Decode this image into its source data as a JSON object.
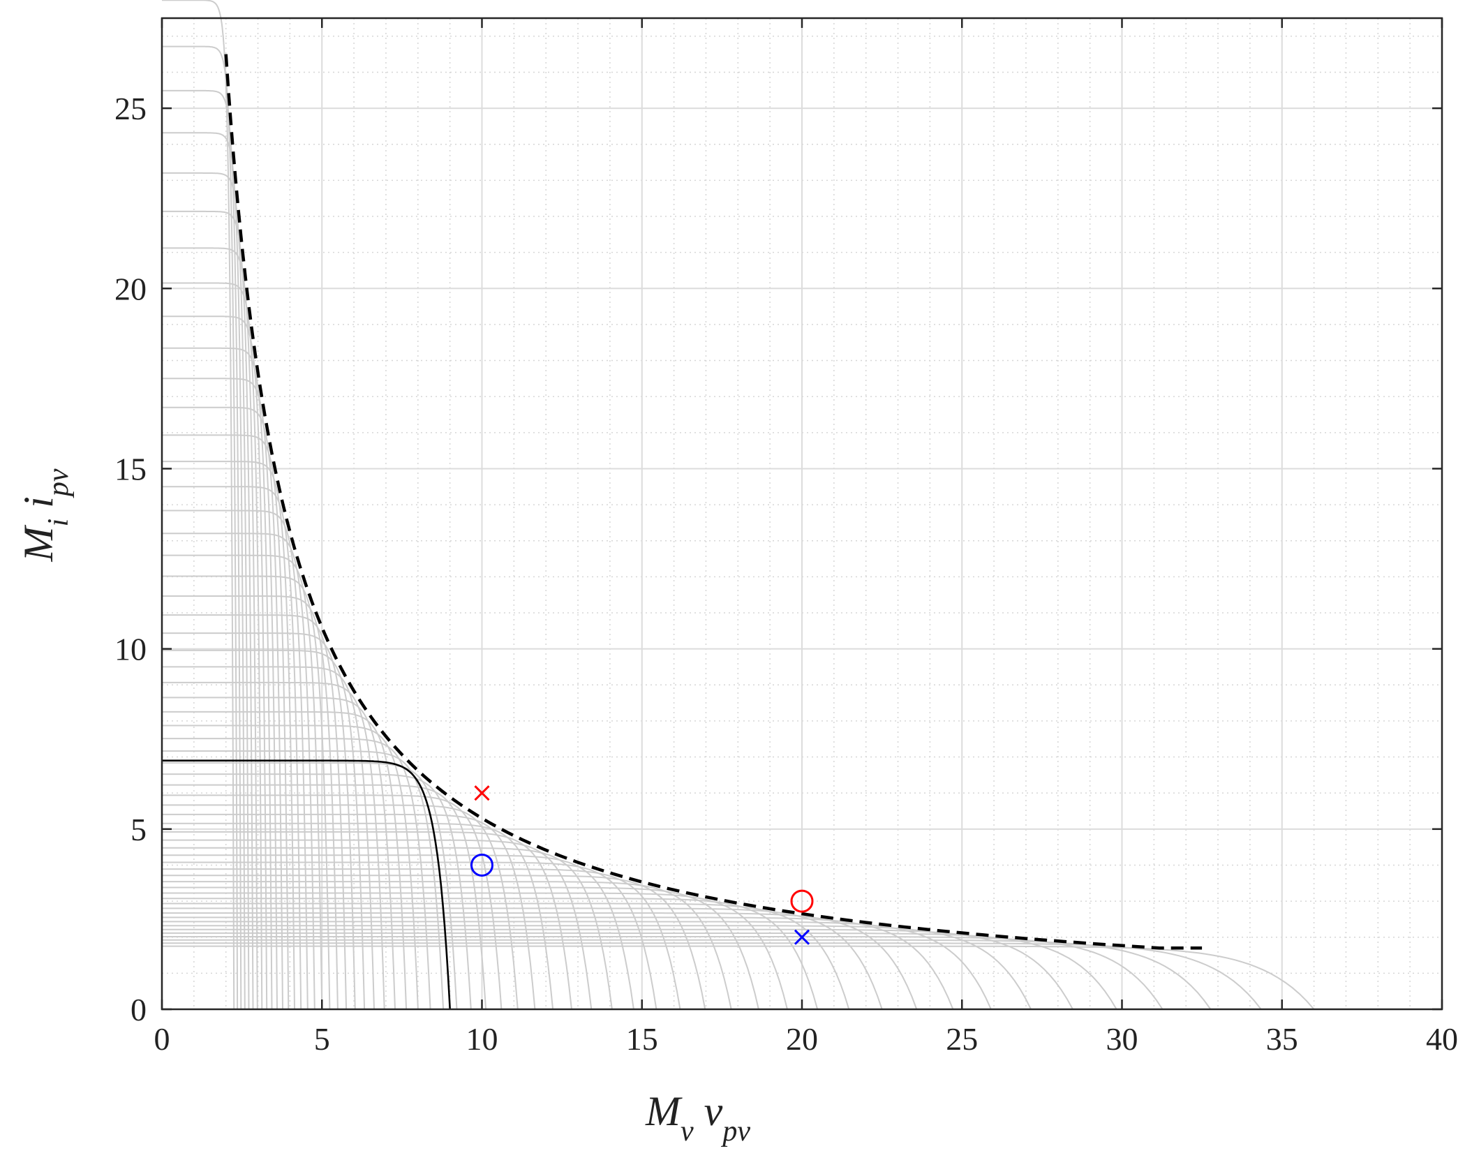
{
  "chart_data": {
    "type": "line",
    "title": "",
    "xlabel": {
      "main": "M",
      "sub1": "v",
      "mid": " v",
      "sub2": "pv"
    },
    "ylabel": {
      "main": "M",
      "sub1": "i",
      "mid": " i",
      "sub2": "pv"
    },
    "xlim": [
      0,
      40
    ],
    "ylim": [
      0,
      27.5
    ],
    "x_ticks": [
      0,
      5,
      10,
      15,
      20,
      25,
      30,
      35,
      40
    ],
    "x_tick_labels": [
      "0",
      "5",
      "10",
      "15",
      "20",
      "25",
      "30",
      "35",
      "40"
    ],
    "y_ticks": [
      0,
      5,
      10,
      15,
      20,
      25
    ],
    "y_tick_labels": [
      "0",
      "5",
      "10",
      "15",
      "20",
      "25"
    ],
    "grid": true,
    "minor_grid": true,
    "legend": "none",
    "family": {
      "description_color": "#cccccc",
      "voc": 36.0,
      "isc": 1.75,
      "k_min": 1.0,
      "k_max": 16.0,
      "count": 60
    },
    "highlighted_curve": {
      "isc": 6.9,
      "voc": 9.0,
      "color": "#000000"
    },
    "envelope": {
      "x_min": 2.0,
      "x_max": 32.5,
      "x_start_y": 26.5,
      "x_end_y": 1.7,
      "color": "#000000",
      "dash": "dashed"
    },
    "markers": [
      {
        "shape": "x",
        "x": 10,
        "y": 6.0,
        "color": "#ff0000"
      },
      {
        "shape": "o",
        "x": 10,
        "y": 4.0,
        "color": "#0000ff"
      },
      {
        "shape": "o",
        "x": 20,
        "y": 3.0,
        "color": "#ff0000"
      },
      {
        "shape": "x",
        "x": 20,
        "y": 2.0,
        "color": "#0000ff"
      }
    ]
  }
}
